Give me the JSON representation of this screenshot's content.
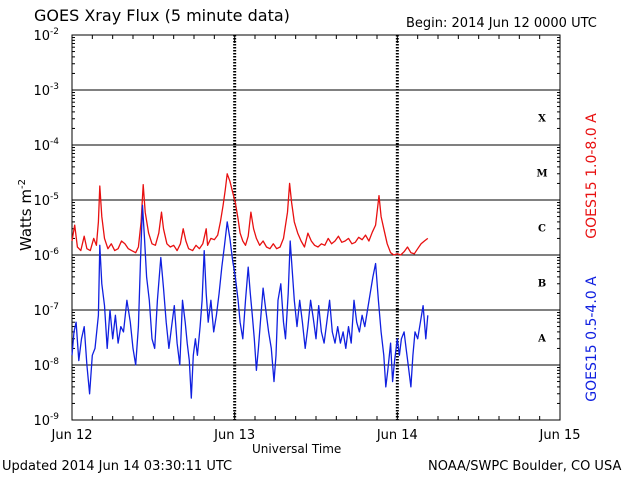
{
  "header": {
    "title": "GOES Xray Flux (5 minute data)",
    "begin": "Begin:  2014 Jun 12 0000 UTC"
  },
  "footer": {
    "updated": "Updated 2014 Jun 14 03:30:11 UTC",
    "credit": "NOAA/SWPC Boulder, CO USA"
  },
  "chart_data": {
    "type": "line",
    "title": "GOES Xray Flux (5 minute data)",
    "xlabel": "Universal Time",
    "ylabel": "Watts m",
    "ylabel_sup": "-2",
    "y_scale": "log",
    "ylim": [
      1e-09,
      0.01
    ],
    "xlim": [
      0,
      72
    ],
    "x_ticks": [
      {
        "label": "Jun 12",
        "hour": 0
      },
      {
        "label": "Jun 13",
        "hour": 24
      },
      {
        "label": "Jun 14",
        "hour": 48
      },
      {
        "label": "Jun 15",
        "hour": 72
      }
    ],
    "y_ticks": [
      {
        "base": "10",
        "exp": "-9",
        "value": 1e-09
      },
      {
        "base": "10",
        "exp": "-8",
        "value": 1e-08
      },
      {
        "base": "10",
        "exp": "-7",
        "value": 1e-07
      },
      {
        "base": "10",
        "exp": "-6",
        "value": 1e-06
      },
      {
        "base": "10",
        "exp": "-5",
        "value": 1e-05
      },
      {
        "base": "10",
        "exp": "-4",
        "value": 0.0001
      },
      {
        "base": "10",
        "exp": "-3",
        "value": 0.001
      },
      {
        "base": "10",
        "exp": "-2",
        "value": 0.01
      }
    ],
    "flare_classes": [
      {
        "label": "A",
        "value": 3.16e-08
      },
      {
        "label": "B",
        "value": 3.16e-07
      },
      {
        "label": "C",
        "value": 3.16e-06
      },
      {
        "label": "M",
        "value": 3.16e-05
      },
      {
        "label": "X",
        "value": 0.000316
      }
    ],
    "series": [
      {
        "name": "GOES15 1.0-8.0 A",
        "color": "#e81010",
        "points": [
          [
            0,
            1.8e-06
          ],
          [
            0.4,
            3.5e-06
          ],
          [
            0.8,
            1.4e-06
          ],
          [
            1.3,
            1.2e-06
          ],
          [
            1.8,
            2.2e-06
          ],
          [
            2.2,
            1.3e-06
          ],
          [
            2.7,
            1.2e-06
          ],
          [
            3.2,
            2e-06
          ],
          [
            3.6,
            1.5e-06
          ],
          [
            3.9,
            4e-06
          ],
          [
            4.1,
            1.8e-05
          ],
          [
            4.4,
            5e-06
          ],
          [
            4.8,
            2e-06
          ],
          [
            5.3,
            1.3e-06
          ],
          [
            5.8,
            1.6e-06
          ],
          [
            6.3,
            1.2e-06
          ],
          [
            6.8,
            1.3e-06
          ],
          [
            7.3,
            1.8e-06
          ],
          [
            7.8,
            1.6e-06
          ],
          [
            8.3,
            1.3e-06
          ],
          [
            8.8,
            1.2e-06
          ],
          [
            9.4,
            1.1e-06
          ],
          [
            9.8,
            1.4e-06
          ],
          [
            10.2,
            4e-06
          ],
          [
            10.5,
            1.9e-05
          ],
          [
            10.8,
            6e-06
          ],
          [
            11.3,
            2.5e-06
          ],
          [
            11.8,
            1.6e-06
          ],
          [
            12.3,
            1.5e-06
          ],
          [
            12.8,
            2.5e-06
          ],
          [
            13.2,
            6e-06
          ],
          [
            13.5,
            3e-06
          ],
          [
            14,
            1.6e-06
          ],
          [
            14.5,
            1.4e-06
          ],
          [
            15,
            1.5e-06
          ],
          [
            15.5,
            1.2e-06
          ],
          [
            16,
            1.6e-06
          ],
          [
            16.4,
            3e-06
          ],
          [
            16.8,
            1.8e-06
          ],
          [
            17.2,
            1.3e-06
          ],
          [
            17.8,
            1.2e-06
          ],
          [
            18.3,
            1.5e-06
          ],
          [
            18.8,
            1.3e-06
          ],
          [
            19.3,
            1.6e-06
          ],
          [
            19.8,
            3e-06
          ],
          [
            20,
            1.5e-06
          ],
          [
            20.5,
            2e-06
          ],
          [
            21,
            1.9e-06
          ],
          [
            21.5,
            2.3e-06
          ],
          [
            21.9,
            4e-06
          ],
          [
            22.3,
            8e-06
          ],
          [
            22.6,
            1.5e-05
          ],
          [
            22.9,
            3e-05
          ],
          [
            23.3,
            2.2e-05
          ],
          [
            23.7,
            1.4e-05
          ],
          [
            24.1,
            9e-06
          ],
          [
            24.5,
            4.5e-06
          ],
          [
            24.8,
            2.5e-06
          ],
          [
            25.2,
            1.8e-06
          ],
          [
            25.6,
            1.5e-06
          ],
          [
            26,
            2.2e-06
          ],
          [
            26.4,
            6e-06
          ],
          [
            26.8,
            3e-06
          ],
          [
            27.2,
            2e-06
          ],
          [
            27.7,
            1.5e-06
          ],
          [
            28.2,
            1.8e-06
          ],
          [
            28.7,
            1.4e-06
          ],
          [
            29.2,
            1.3e-06
          ],
          [
            29.7,
            1.6e-06
          ],
          [
            30.2,
            1.3e-06
          ],
          [
            30.7,
            1.4e-06
          ],
          [
            31.2,
            2e-06
          ],
          [
            31.8,
            6e-06
          ],
          [
            32.1,
            2e-05
          ],
          [
            32.4,
            9e-06
          ],
          [
            32.8,
            4e-06
          ],
          [
            33.3,
            2.5e-06
          ],
          [
            33.8,
            1.8e-06
          ],
          [
            34.3,
            1.4e-06
          ],
          [
            34.8,
            2.5e-06
          ],
          [
            35.3,
            1.8e-06
          ],
          [
            35.8,
            1.5e-06
          ],
          [
            36.3,
            1.4e-06
          ],
          [
            36.8,
            1.6e-06
          ],
          [
            37.3,
            1.5e-06
          ],
          [
            37.8,
            2e-06
          ],
          [
            38.3,
            1.6e-06
          ],
          [
            38.8,
            1.8e-06
          ],
          [
            39.3,
            2.2e-06
          ],
          [
            39.8,
            1.7e-06
          ],
          [
            40.3,
            1.8e-06
          ],
          [
            40.8,
            2e-06
          ],
          [
            41.3,
            1.6e-06
          ],
          [
            41.8,
            1.7e-06
          ],
          [
            42.3,
            2.1e-06
          ],
          [
            42.8,
            1.9e-06
          ],
          [
            43.3,
            2.3e-06
          ],
          [
            43.8,
            1.8e-06
          ],
          [
            44.3,
            2.6e-06
          ],
          [
            44.8,
            3.5e-06
          ],
          [
            45.3,
            1.2e-05
          ],
          [
            45.6,
            5e-06
          ],
          [
            46,
            3e-06
          ],
          [
            46.5,
            1.6e-06
          ],
          [
            47,
            1.1e-06
          ],
          [
            47.5,
            1e-06
          ],
          [
            48,
            1.05e-06
          ],
          [
            48.5,
            1e-06
          ],
          [
            49,
            1.15e-06
          ],
          [
            49.5,
            1.4e-06
          ],
          [
            50,
            1.1e-06
          ],
          [
            50.5,
            1.05e-06
          ],
          [
            51,
            1.3e-06
          ],
          [
            51.5,
            1.6e-06
          ],
          [
            52,
            1.8e-06
          ],
          [
            52.5,
            2e-06
          ]
        ]
      },
      {
        "name": "GOES15 0.5-4.0 A",
        "color": "#1020e0",
        "points": [
          [
            0,
            1.5e-08
          ],
          [
            0.3,
            4e-08
          ],
          [
            0.6,
            6e-08
          ],
          [
            1,
            1.2e-08
          ],
          [
            1.4,
            3e-08
          ],
          [
            1.8,
            5e-08
          ],
          [
            2.2,
            1e-08
          ],
          [
            2.6,
            3e-09
          ],
          [
            3,
            1.5e-08
          ],
          [
            3.4,
            2e-08
          ],
          [
            3.9,
            8e-08
          ],
          [
            4.1,
            1.5e-06
          ],
          [
            4.4,
            3e-07
          ],
          [
            4.8,
            1.2e-07
          ],
          [
            5.2,
            2e-08
          ],
          [
            5.6,
            1e-07
          ],
          [
            6,
            3e-08
          ],
          [
            6.4,
            8e-08
          ],
          [
            6.8,
            2.5e-08
          ],
          [
            7.2,
            5e-08
          ],
          [
            7.6,
            4e-08
          ],
          [
            8.1,
            1.5e-07
          ],
          [
            8.6,
            6e-08
          ],
          [
            9,
            2e-08
          ],
          [
            9.4,
            1e-08
          ],
          [
            9.8,
            5e-08
          ],
          [
            10.1,
            8e-07
          ],
          [
            10.4,
            8e-06
          ],
          [
            10.7,
            2e-06
          ],
          [
            11,
            4e-07
          ],
          [
            11.4,
            1.5e-07
          ],
          [
            11.8,
            3e-08
          ],
          [
            12.2,
            2e-08
          ],
          [
            12.6,
            1.5e-07
          ],
          [
            13.1,
            9e-07
          ],
          [
            13.5,
            2.5e-07
          ],
          [
            13.9,
            6e-08
          ],
          [
            14.3,
            2e-08
          ],
          [
            14.7,
            5e-08
          ],
          [
            15.1,
            1.2e-07
          ],
          [
            15.5,
            2.5e-08
          ],
          [
            15.9,
            1e-08
          ],
          [
            16.3,
            1.5e-07
          ],
          [
            16.7,
            6e-08
          ],
          [
            17,
            2.5e-08
          ],
          [
            17.3,
            1.2e-08
          ],
          [
            17.6,
            2.5e-09
          ],
          [
            17.9,
            1.5e-08
          ],
          [
            18.2,
            3e-08
          ],
          [
            18.5,
            1.5e-08
          ],
          [
            18.9,
            5e-08
          ],
          [
            19.2,
            1.5e-07
          ],
          [
            19.5,
            1.2e-06
          ],
          [
            19.8,
            2e-07
          ],
          [
            20.1,
            6e-08
          ],
          [
            20.5,
            1.5e-07
          ],
          [
            20.9,
            4e-08
          ],
          [
            21.3,
            8e-08
          ],
          [
            21.7,
            2e-07
          ],
          [
            22.1,
            6e-07
          ],
          [
            22.5,
            1.5e-06
          ],
          [
            22.9,
            4e-06
          ],
          [
            23.3,
            2e-06
          ],
          [
            23.7,
            8e-07
          ],
          [
            24.1,
            4e-07
          ],
          [
            24.5,
            1.5e-07
          ],
          [
            24.8,
            6e-08
          ],
          [
            25.2,
            3e-08
          ],
          [
            25.6,
            1.5e-07
          ],
          [
            26,
            6e-07
          ],
          [
            26.3,
            2e-07
          ],
          [
            26.6,
            8e-08
          ],
          [
            26.9,
            3e-08
          ],
          [
            27.2,
            8e-09
          ],
          [
            27.5,
            2e-08
          ],
          [
            27.8,
            6e-08
          ],
          [
            28.2,
            2.5e-07
          ],
          [
            28.6,
            1e-07
          ],
          [
            29,
            4e-08
          ],
          [
            29.4,
            2e-08
          ],
          [
            29.8,
            5e-09
          ],
          [
            30.1,
            1.5e-08
          ],
          [
            30.4,
            1.5e-07
          ],
          [
            30.8,
            3e-07
          ],
          [
            31.2,
            6e-08
          ],
          [
            31.5,
            3e-08
          ],
          [
            31.9,
            2e-07
          ],
          [
            32.2,
            1.8e-06
          ],
          [
            32.5,
            5e-07
          ],
          [
            32.8,
            1.5e-07
          ],
          [
            33.2,
            5e-08
          ],
          [
            33.6,
            1.5e-07
          ],
          [
            34,
            6e-08
          ],
          [
            34.4,
            2e-08
          ],
          [
            34.8,
            5e-08
          ],
          [
            35.2,
            1.5e-07
          ],
          [
            35.6,
            7e-08
          ],
          [
            36,
            3e-08
          ],
          [
            36.4,
            1.2e-07
          ],
          [
            36.8,
            4e-08
          ],
          [
            37.2,
            2.5e-08
          ],
          [
            37.6,
            6e-08
          ],
          [
            38,
            1.5e-07
          ],
          [
            38.4,
            4e-08
          ],
          [
            38.8,
            2.5e-08
          ],
          [
            39.2,
            5e-08
          ],
          [
            39.6,
            2.5e-08
          ],
          [
            40,
            4e-08
          ],
          [
            40.4,
            2e-08
          ],
          [
            40.8,
            5e-08
          ],
          [
            41.2,
            2.5e-08
          ],
          [
            41.6,
            1.5e-07
          ],
          [
            42,
            6e-08
          ],
          [
            42.4,
            4e-08
          ],
          [
            42.8,
            8e-08
          ],
          [
            43.2,
            5e-08
          ],
          [
            43.6,
            1e-07
          ],
          [
            44,
            2e-07
          ],
          [
            44.4,
            4e-07
          ],
          [
            44.8,
            7e-07
          ],
          [
            45.2,
            1.5e-07
          ],
          [
            45.6,
            4e-08
          ],
          [
            46,
            1.5e-08
          ],
          [
            46.3,
            4e-09
          ],
          [
            46.6,
            8e-09
          ],
          [
            47,
            2.5e-08
          ],
          [
            47.3,
            5e-09
          ],
          [
            47.6,
            1.2e-08
          ],
          [
            48,
            3e-08
          ],
          [
            48.3,
            1.5e-08
          ],
          [
            48.6,
            3e-08
          ],
          [
            49,
            4e-08
          ],
          [
            49.3,
            2e-08
          ],
          [
            49.6,
            1e-08
          ],
          [
            50,
            4e-09
          ],
          [
            50.3,
            1.5e-08
          ],
          [
            50.6,
            4e-08
          ],
          [
            51,
            3e-08
          ],
          [
            51.4,
            6e-08
          ],
          [
            51.8,
            1.2e-07
          ],
          [
            52.2,
            3e-08
          ],
          [
            52.5,
            8e-08
          ]
        ]
      }
    ]
  }
}
